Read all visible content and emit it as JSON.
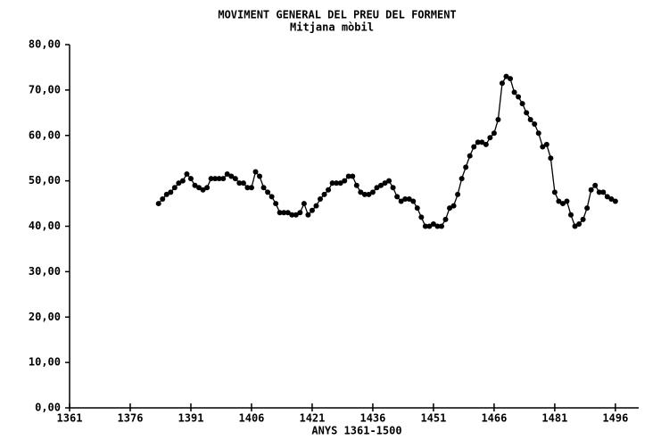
{
  "chart_data": {
    "type": "line",
    "title": "MOVIMENT GENERAL DEL PREU DEL FORMENT",
    "subtitle": "Mitjana mòbil",
    "x_label": "ANYS 1361-1500",
    "x": [
      1383,
      1384,
      1385,
      1386,
      1387,
      1388,
      1389,
      1390,
      1391,
      1392,
      1393,
      1394,
      1395,
      1396,
      1397,
      1398,
      1399,
      1400,
      1401,
      1402,
      1403,
      1404,
      1405,
      1406,
      1407,
      1408,
      1409,
      1410,
      1411,
      1412,
      1413,
      1414,
      1415,
      1416,
      1417,
      1418,
      1419,
      1420,
      1421,
      1422,
      1423,
      1424,
      1425,
      1426,
      1427,
      1428,
      1429,
      1430,
      1431,
      1432,
      1433,
      1434,
      1435,
      1436,
      1437,
      1438,
      1439,
      1440,
      1441,
      1442,
      1443,
      1444,
      1445,
      1446,
      1447,
      1448,
      1449,
      1450,
      1451,
      1452,
      1453,
      1454,
      1455,
      1456,
      1457,
      1458,
      1459,
      1460,
      1461,
      1462,
      1463,
      1464,
      1465,
      1466,
      1467,
      1468,
      1469,
      1470,
      1471,
      1472,
      1473,
      1474,
      1475,
      1476,
      1477,
      1478,
      1479,
      1480,
      1481,
      1482,
      1483,
      1484,
      1485,
      1486,
      1487,
      1488,
      1489,
      1490,
      1491,
      1492,
      1493,
      1494,
      1495,
      1496
    ],
    "values": [
      45,
      46,
      47,
      47.5,
      48.5,
      49.5,
      50,
      51.5,
      50.5,
      49,
      48.5,
      48,
      48.5,
      50.5,
      50.5,
      50.5,
      50.5,
      51.5,
      51,
      50.5,
      49.5,
      49.5,
      48.5,
      48.5,
      52,
      51,
      48.5,
      47.5,
      46.5,
      45,
      43,
      43,
      43,
      42.5,
      42.5,
      43,
      45,
      42.5,
      43.5,
      44.5,
      46,
      47,
      48,
      49.5,
      49.5,
      49.5,
      50,
      51,
      51,
      49,
      47.5,
      47,
      47,
      47.5,
      48.5,
      49,
      49.5,
      50,
      48.5,
      46.5,
      45.5,
      46,
      46,
      45.5,
      44,
      42,
      40,
      40,
      40.5,
      40,
      40,
      41.5,
      44,
      44.5,
      47,
      50.5,
      53,
      55.5,
      57.5,
      58.5,
      58.5,
      58,
      59.5,
      60.5,
      63.5,
      71.5,
      73,
      72.5,
      69.5,
      68.5,
      67,
      65,
      63.5,
      62.5,
      60.5,
      57.5,
      58,
      55,
      47.5,
      45.5,
      45,
      45.5,
      42.5,
      40,
      40.5,
      41.5,
      44,
      48,
      49,
      47.5,
      47.5,
      46.5,
      46,
      45.5
    ],
    "color": "#000000",
    "xlim": [
      1361,
      1500
    ],
    "xticks": [
      1361,
      1376,
      1391,
      1406,
      1421,
      1436,
      1451,
      1466,
      1481,
      1496
    ],
    "ylim": [
      0,
      80
    ],
    "yticks": [
      {
        "value": 0,
        "label": "0,00"
      },
      {
        "value": 10,
        "label": "10,00"
      },
      {
        "value": 20,
        "label": "20,00"
      },
      {
        "value": 30,
        "label": "30,00"
      },
      {
        "value": 40,
        "label": "40,00"
      },
      {
        "value": 50,
        "label": "50,00"
      },
      {
        "value": 60,
        "label": "60,00"
      },
      {
        "value": 70,
        "label": "70,00"
      },
      {
        "value": 80,
        "label": "80,00"
      }
    ]
  }
}
